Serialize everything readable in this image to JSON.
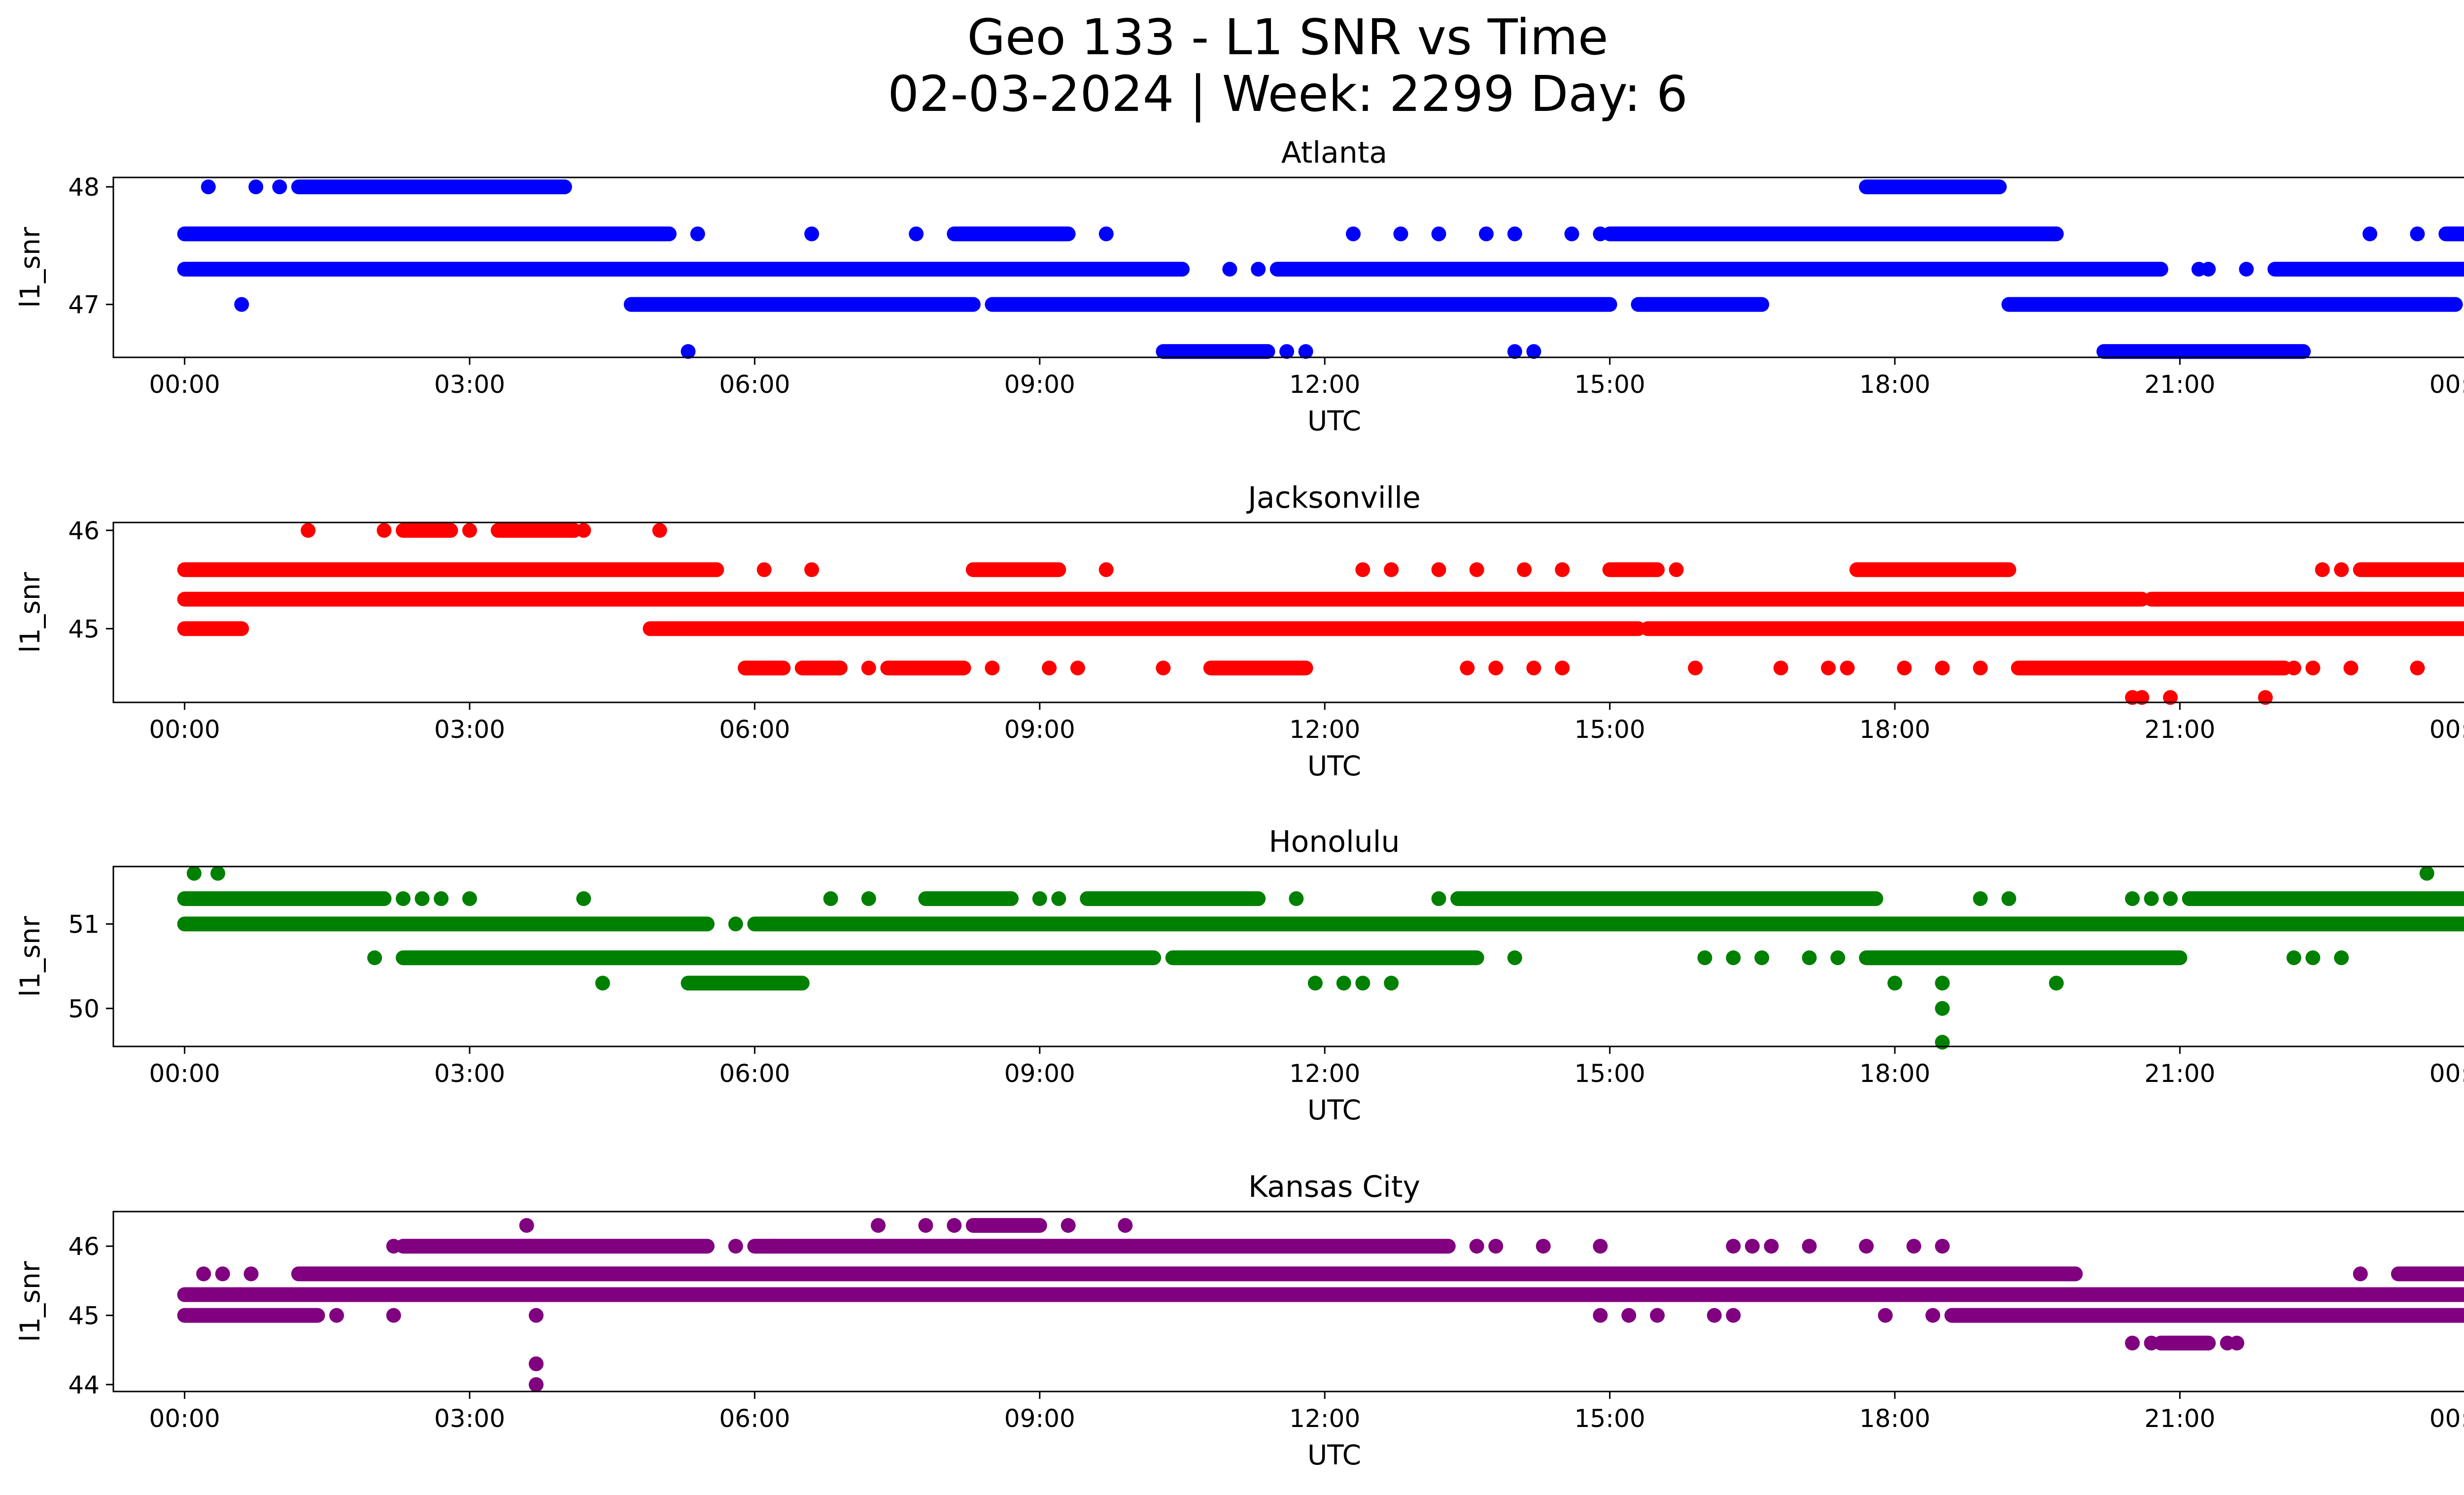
{
  "figure": {
    "title_line1": "Geo 133 - L1 SNR vs Time",
    "title_line2": "02-03-2024 | Week: 2299 Day: 6"
  },
  "chart_data": [
    {
      "type": "scatter",
      "title": "Atlanta",
      "xlabel": "UTC",
      "ylabel": "l1_snr",
      "color": "#0000ff",
      "xlim": [
        -0.75,
        24.95
      ],
      "ylim": [
        46.55,
        48.08
      ],
      "xticks": [
        0,
        3,
        6,
        9,
        12,
        15,
        18,
        21,
        24
      ],
      "xtick_labels": [
        "00:00",
        "03:00",
        "06:00",
        "09:00",
        "12:00",
        "15:00",
        "18:00",
        "21:00",
        "00:00"
      ],
      "yticks": [
        47,
        48
      ],
      "ytick_labels": [
        "47",
        "48"
      ],
      "series": [
        {
          "y": 48.0,
          "segments": [
            [
              1.2,
              4.0
            ],
            [
              17.7,
              19.1
            ]
          ],
          "points": [
            0.25,
            0.75,
            1.0
          ]
        },
        {
          "y": 47.6,
          "segments": [
            [
              0.0,
              5.1
            ],
            [
              8.1,
              9.3
            ],
            [
              15.0,
              19.7
            ],
            [
              23.8,
              24.0
            ]
          ],
          "points": [
            5.4,
            6.6,
            7.7,
            9.7,
            12.3,
            12.8,
            13.2,
            13.7,
            14.0,
            14.6,
            14.9,
            23.0,
            23.5
          ]
        },
        {
          "y": 47.3,
          "segments": [
            [
              0.0,
              10.5
            ],
            [
              11.5,
              20.8
            ],
            [
              22.0,
              24.0
            ]
          ],
          "points": [
            11.0,
            11.3,
            21.2,
            21.3,
            21.7
          ]
        },
        {
          "y": 47.0,
          "segments": [
            [
              4.7,
              8.3
            ],
            [
              8.5,
              15.0
            ],
            [
              15.3,
              16.6
            ],
            [
              19.2,
              23.9
            ]
          ],
          "points": [
            0.6
          ]
        },
        {
          "y": 46.6,
          "segments": [
            [
              10.3,
              11.4
            ],
            [
              20.2,
              22.3
            ]
          ],
          "points": [
            5.3,
            11.6,
            11.8,
            14.0,
            14.2
          ]
        }
      ]
    },
    {
      "type": "scatter",
      "title": "Jacksonville",
      "xlabel": "UTC",
      "ylabel": "l1_snr",
      "color": "#ff0000",
      "xlim": [
        -0.75,
        24.95
      ],
      "ylim": [
        44.25,
        46.08
      ],
      "xticks": [
        0,
        3,
        6,
        9,
        12,
        15,
        18,
        21,
        24
      ],
      "xtick_labels": [
        "00:00",
        "03:00",
        "06:00",
        "09:00",
        "12:00",
        "15:00",
        "18:00",
        "21:00",
        "00:00"
      ],
      "yticks": [
        45,
        46
      ],
      "ytick_labels": [
        "45",
        "46"
      ],
      "series": [
        {
          "y": 46.0,
          "segments": [
            [
              2.3,
              2.8
            ],
            [
              3.3,
              4.1
            ]
          ],
          "points": [
            1.3,
            2.1,
            3.0,
            4.2,
            5.0
          ]
        },
        {
          "y": 45.6,
          "segments": [
            [
              0.0,
              5.6
            ],
            [
              8.3,
              9.2
            ],
            [
              15.0,
              15.5
            ],
            [
              17.6,
              19.2
            ],
            [
              22.9,
              24.0
            ]
          ],
          "points": [
            6.1,
            6.6,
            9.7,
            12.4,
            12.7,
            13.2,
            13.6,
            14.1,
            14.5,
            15.7,
            22.5,
            22.7
          ]
        },
        {
          "y": 45.3,
          "segments": [
            [
              0.0,
              20.6
            ],
            [
              20.7,
              24.0
            ]
          ],
          "points": []
        },
        {
          "y": 45.0,
          "segments": [
            [
              0.0,
              0.6
            ],
            [
              4.9,
              15.3
            ],
            [
              15.4,
              24.0
            ]
          ],
          "points": []
        },
        {
          "y": 44.6,
          "segments": [
            [
              5.9,
              6.3
            ],
            [
              6.5,
              6.9
            ],
            [
              7.4,
              8.2
            ],
            [
              10.8,
              11.8
            ],
            [
              19.3,
              22.1
            ]
          ],
          "points": [
            5.9,
            6.3,
            7.2,
            8.5,
            9.1,
            9.4,
            10.3,
            13.5,
            13.8,
            14.2,
            14.5,
            15.9,
            16.8,
            17.3,
            17.5,
            18.1,
            18.5,
            18.9,
            22.2,
            22.4,
            22.8,
            23.5
          ]
        },
        {
          "y": 44.3,
          "segments": [],
          "points": [
            20.5,
            20.6,
            20.9,
            21.9
          ]
        }
      ]
    },
    {
      "type": "scatter",
      "title": "Honolulu",
      "xlabel": "UTC",
      "ylabel": "l1_snr",
      "color": "#008000",
      "xlim": [
        -0.75,
        24.95
      ],
      "ylim": [
        49.55,
        51.68
      ],
      "xticks": [
        0,
        3,
        6,
        9,
        12,
        15,
        18,
        21,
        24
      ],
      "xtick_labels": [
        "00:00",
        "03:00",
        "06:00",
        "09:00",
        "12:00",
        "15:00",
        "18:00",
        "21:00",
        "00:00"
      ],
      "yticks": [
        50,
        51
      ],
      "ytick_labels": [
        "50",
        "51"
      ],
      "series": [
        {
          "y": 51.6,
          "segments": [],
          "points": [
            0.1,
            0.35,
            23.6
          ]
        },
        {
          "y": 51.3,
          "segments": [
            [
              0.0,
              2.1
            ],
            [
              7.8,
              8.7
            ],
            [
              9.5,
              11.3
            ],
            [
              13.4,
              17.8
            ],
            [
              21.1,
              24.0
            ]
          ],
          "points": [
            2.3,
            2.5,
            2.7,
            3.0,
            4.2,
            6.8,
            7.2,
            9.0,
            9.2,
            11.7,
            13.2,
            18.9,
            19.2,
            20.5,
            20.7,
            20.9
          ]
        },
        {
          "y": 51.0,
          "segments": [
            [
              0.0,
              5.5
            ],
            [
              6.0,
              24.0
            ]
          ],
          "points": [
            5.8
          ]
        },
        {
          "y": 50.6,
          "segments": [
            [
              2.3,
              10.2
            ],
            [
              10.4,
              13.6
            ],
            [
              17.7,
              21.0
            ]
          ],
          "points": [
            2.0,
            14.0,
            16.0,
            16.3,
            16.6,
            17.1,
            17.4,
            22.2,
            22.4,
            22.7
          ]
        },
        {
          "y": 50.3,
          "segments": [
            [
              5.3,
              6.5
            ]
          ],
          "points": [
            4.4,
            11.9,
            12.2,
            12.4,
            12.7,
            18.0,
            18.5,
            19.7
          ]
        },
        {
          "y": 50.0,
          "segments": [],
          "points": [
            18.5
          ]
        },
        {
          "y": 49.6,
          "segments": [],
          "points": [
            18.5
          ]
        }
      ]
    },
    {
      "type": "scatter",
      "title": "Kansas City",
      "xlabel": "UTC",
      "ylabel": "l1_snr",
      "color": "#800080",
      "xlim": [
        -0.75,
        24.95
      ],
      "ylim": [
        43.9,
        46.5
      ],
      "xticks": [
        0,
        3,
        6,
        9,
        12,
        15,
        18,
        21,
        24
      ],
      "xtick_labels": [
        "00:00",
        "03:00",
        "06:00",
        "09:00",
        "12:00",
        "15:00",
        "18:00",
        "21:00",
        "00:00"
      ],
      "yticks": [
        44,
        45,
        46
      ],
      "ytick_labels": [
        "44",
        "45",
        "46"
      ],
      "series": [
        {
          "y": 46.3,
          "segments": [
            [
              8.3,
              9.0
            ]
          ],
          "points": [
            3.6,
            7.3,
            7.8,
            8.1,
            9.3,
            9.9
          ]
        },
        {
          "y": 46.0,
          "segments": [
            [
              2.3,
              5.5
            ],
            [
              6.0,
              13.3
            ]
          ],
          "points": [
            2.2,
            5.8,
            6.2,
            13.6,
            13.8,
            14.3,
            14.9,
            16.3,
            16.5,
            16.7,
            17.1,
            17.7,
            18.2,
            18.5
          ]
        },
        {
          "y": 45.6,
          "segments": [
            [
              1.2,
              19.9
            ],
            [
              23.3,
              24.0
            ]
          ],
          "points": [
            0.2,
            0.4,
            0.7,
            22.9
          ]
        },
        {
          "y": 45.3,
          "segments": [
            [
              0.0,
              24.0
            ]
          ],
          "points": []
        },
        {
          "y": 45.0,
          "segments": [
            [
              0.0,
              1.4
            ],
            [
              18.6,
              24.0
            ]
          ],
          "points": [
            1.6,
            2.2,
            3.7,
            14.9,
            15.2,
            15.5,
            16.1,
            16.3,
            17.9,
            18.4
          ]
        },
        {
          "y": 44.6,
          "segments": [
            [
              20.8,
              21.3
            ]
          ],
          "points": [
            20.5,
            20.7,
            21.5,
            21.6
          ]
        },
        {
          "y": 44.3,
          "segments": [],
          "points": [
            3.7
          ]
        },
        {
          "y": 44.0,
          "segments": [],
          "points": [
            3.7
          ]
        }
      ]
    }
  ]
}
